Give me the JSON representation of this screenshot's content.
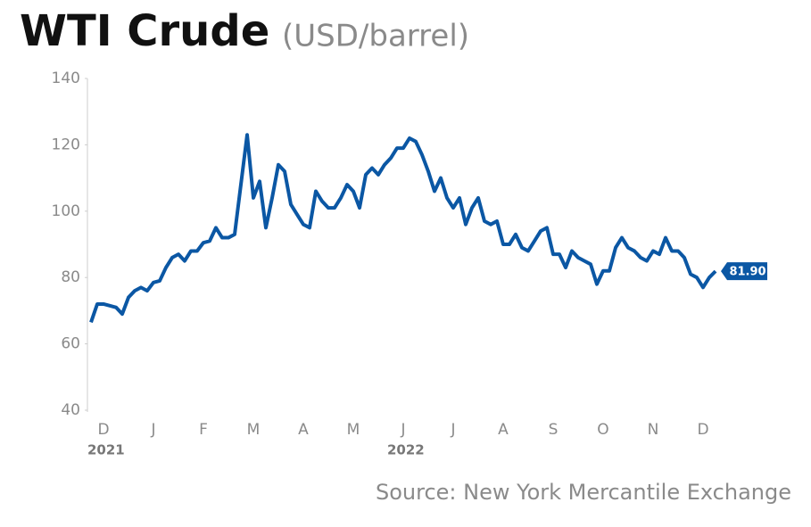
{
  "chart_data": {
    "type": "line",
    "title": "WTI Crude",
    "subtitle": "(USD/barrel)",
    "source": "Source: New York Mercantile Exchange",
    "categories": [
      null,
      null,
      "D",
      null,
      null,
      null,
      null,
      null,
      null,
      null,
      "J",
      null,
      null,
      null,
      null,
      null,
      null,
      null,
      "F",
      null,
      null,
      null,
      null,
      null,
      null,
      null,
      "M",
      null,
      null,
      null,
      null,
      null,
      null,
      null,
      "A",
      null,
      null,
      null,
      null,
      null,
      null,
      null,
      "M",
      null,
      null,
      null,
      null,
      null,
      null,
      null,
      "J",
      null,
      null,
      null,
      null,
      null,
      null,
      null,
      "J",
      null,
      null,
      null,
      null,
      null,
      null,
      null,
      "A",
      null,
      null,
      null,
      null,
      null,
      null,
      null,
      "S",
      null,
      null,
      null,
      null,
      null,
      null,
      null,
      "O",
      null,
      null,
      null,
      null,
      null,
      null,
      null,
      "N",
      null,
      null,
      null,
      null,
      null,
      null,
      null,
      "D",
      null,
      null
    ],
    "category_groups": [
      null,
      null,
      "2021",
      null,
      null,
      null,
      null,
      null,
      null,
      null,
      null,
      null,
      null,
      null,
      null,
      null,
      null,
      null,
      null,
      null,
      null,
      null,
      null,
      null,
      null,
      null,
      null,
      null,
      null,
      null,
      null,
      null,
      null,
      null,
      null,
      null,
      null,
      null,
      null,
      null,
      null,
      null,
      null,
      null,
      null,
      null,
      null,
      null,
      null,
      null,
      "2022",
      null,
      null,
      null,
      null,
      null,
      null,
      null,
      null,
      null,
      null,
      null,
      null,
      null,
      null,
      null,
      null,
      null,
      null,
      null,
      null,
      null,
      null,
      null,
      null,
      null,
      null,
      null,
      null,
      null,
      null,
      null,
      null,
      null,
      null,
      null,
      null,
      null,
      null,
      null,
      null,
      null,
      null,
      null,
      null,
      null,
      null,
      null,
      null,
      null,
      null
    ],
    "series": [
      {
        "color": "#0b57a4",
        "values": [
          66.5,
          72,
          72,
          71.5,
          71,
          69,
          74,
          76,
          77,
          76,
          78.5,
          79,
          83,
          86,
          87,
          85,
          88,
          88,
          90.5,
          91,
          95,
          92,
          92,
          93,
          108,
          123,
          104,
          109,
          95,
          104,
          114,
          112,
          102,
          99,
          96,
          95,
          106,
          103,
          101,
          101,
          104,
          108,
          106,
          101,
          111,
          113,
          111,
          114,
          116,
          119,
          119,
          122,
          121,
          117,
          112,
          106,
          110,
          104,
          101,
          104,
          96,
          101,
          104,
          97,
          96,
          97,
          90,
          90,
          93,
          89,
          88,
          91,
          94,
          95,
          87,
          87,
          83,
          88,
          86,
          85,
          84,
          78,
          82,
          82,
          89,
          92,
          89,
          88,
          86,
          85,
          88,
          87,
          92,
          88,
          88,
          86,
          81,
          80,
          77,
          80,
          81.9
        ],
        "end_label": "81.90"
      }
    ],
    "ylim": [
      40,
      140
    ],
    "yticks": [
      40,
      60,
      80,
      100,
      120,
      140
    ]
  }
}
